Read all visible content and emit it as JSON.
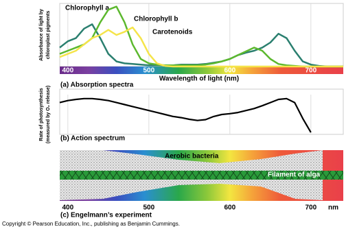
{
  "chart_data": [
    {
      "type": "line",
      "title": "(a) Absorption spectra",
      "xlabel": "Wavelength of light (nm)",
      "ylabel": [
        "Absorbance of light by",
        "chloroplast pigments"
      ],
      "x": [
        390,
        400,
        410,
        420,
        430,
        440,
        450,
        460,
        470,
        480,
        490,
        500,
        510,
        520,
        530,
        540,
        550,
        560,
        570,
        580,
        590,
        600,
        610,
        620,
        630,
        640,
        650,
        660,
        670,
        680,
        690,
        700,
        710,
        720,
        730,
        740
      ],
      "series": [
        {
          "name": "Chlorophyll a",
          "color": "#2a7f6f",
          "values": [
            0.3,
            0.4,
            0.45,
            0.6,
            0.67,
            0.45,
            0.2,
            0.08,
            0.05,
            0.04,
            0.03,
            0.02,
            0.02,
            0.02,
            0.02,
            0.03,
            0.03,
            0.03,
            0.04,
            0.06,
            0.08,
            0.12,
            0.18,
            0.22,
            0.25,
            0.3,
            0.38,
            0.52,
            0.45,
            0.25,
            0.08,
            0.03,
            0.01,
            0,
            0,
            0
          ]
        },
        {
          "name": "Chlorophyll b",
          "color": "#5cb82e",
          "values": [
            0.2,
            0.25,
            0.3,
            0.35,
            0.45,
            0.7,
            0.9,
            0.95,
            0.7,
            0.35,
            0.12,
            0.05,
            0.03,
            0.02,
            0.02,
            0.02,
            0.02,
            0.02,
            0.03,
            0.05,
            0.08,
            0.12,
            0.18,
            0.24,
            0.3,
            0.25,
            0.12,
            0.04,
            0.02,
            0.01,
            0,
            0,
            0,
            0,
            0,
            0
          ]
        },
        {
          "name": "Carotenoids",
          "color": "#f5e44a",
          "values": [
            0.15,
            0.2,
            0.25,
            0.35,
            0.45,
            0.5,
            0.58,
            0.5,
            0.55,
            0.62,
            0.45,
            0.2,
            0.05,
            0.01,
            0,
            0,
            0,
            0,
            0,
            0,
            0,
            0,
            0,
            0,
            0,
            0,
            0,
            0,
            0,
            0,
            0,
            0,
            0,
            0,
            0,
            0
          ]
        }
      ],
      "xlim": [
        390,
        740
      ],
      "xticks": [
        400,
        500,
        600,
        700
      ],
      "ylim": [
        0,
        1
      ],
      "grid": true
    },
    {
      "type": "line",
      "title": "(b) Action spectrum",
      "ylabel": [
        "Rate of photosynthesis",
        "(measured by O₂ release)"
      ],
      "x": [
        390,
        400,
        410,
        420,
        430,
        440,
        450,
        460,
        470,
        480,
        490,
        500,
        510,
        520,
        530,
        540,
        550,
        560,
        570,
        580,
        590,
        600,
        610,
        620,
        630,
        640,
        650,
        660,
        670,
        680,
        690,
        700,
        710,
        720,
        730,
        740
      ],
      "series": [
        {
          "color": "#000000",
          "values": [
            0.8,
            0.85,
            0.88,
            0.9,
            0.9,
            0.88,
            0.85,
            0.8,
            0.75,
            0.7,
            0.65,
            0.6,
            0.55,
            0.5,
            0.45,
            0.42,
            0.38,
            0.35,
            0.37,
            0.45,
            0.5,
            0.52,
            0.55,
            0.6,
            0.65,
            0.72,
            0.8,
            0.88,
            0.9,
            0.8,
            0.4,
            0.05,
            null,
            null,
            null,
            null
          ]
        }
      ],
      "xlim": [
        390,
        740
      ],
      "xticks": [
        400,
        500,
        600,
        700
      ],
      "ylim": [
        0,
        1
      ],
      "grid": true
    },
    {
      "type": "spectrum",
      "title": "(c) Engelmann’s experiment",
      "xlabel": "nm",
      "annotations": [
        "Aerobic bacteria",
        "Filament of alga"
      ],
      "xlim": [
        390,
        740
      ],
      "xticks": [
        400,
        500,
        600,
        700
      ]
    }
  ],
  "footer": "Copyright © Pearson Education, Inc., publishing as Benjamin Cummings."
}
